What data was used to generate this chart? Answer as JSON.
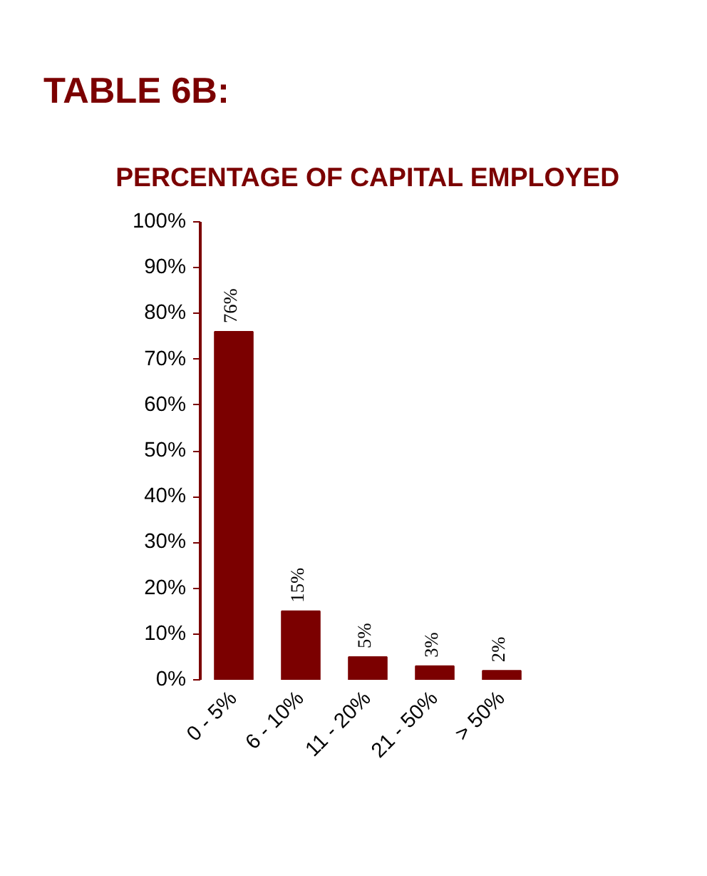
{
  "chart_data": {
    "type": "bar",
    "title": "TABLE 6B:",
    "subtitle": "PERCENTAGE OF CAPITAL EMPLOYED",
    "categories": [
      "0 - 5%",
      "6 - 10%",
      "11 - 20%",
      "21 - 50%",
      "> 50%"
    ],
    "values": [
      76,
      15,
      5,
      3,
      2
    ],
    "color": "#7b0000",
    "value_labels": [
      "76%",
      "15%",
      "5%",
      "3%",
      "2%"
    ],
    "ylim": [
      0,
      100
    ],
    "yticks": [
      {
        "value": 0,
        "label": "0%"
      },
      {
        "value": 10,
        "label": "10%"
      },
      {
        "value": 20,
        "label": "20%"
      },
      {
        "value": 30,
        "label": "30%"
      },
      {
        "value": 40,
        "label": "40%"
      },
      {
        "value": 50,
        "label": "50%"
      },
      {
        "value": 60,
        "label": "60%"
      },
      {
        "value": 70,
        "label": "70%"
      },
      {
        "value": 80,
        "label": "80%"
      },
      {
        "value": 90,
        "label": "90%"
      },
      {
        "value": 100,
        "label": "100%"
      }
    ],
    "grid": false
  }
}
